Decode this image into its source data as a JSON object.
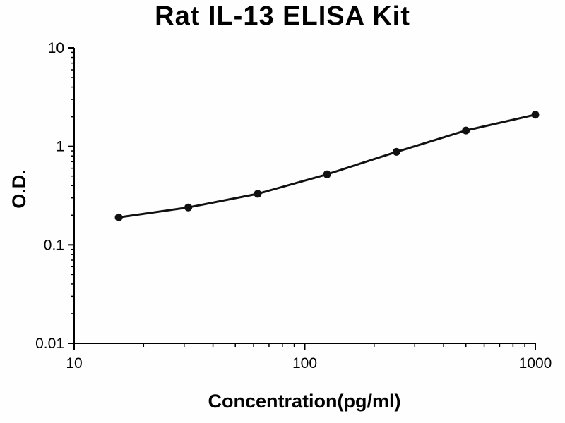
{
  "title": "Rat IL-13 ELISA Kit",
  "chart_data": {
    "type": "line",
    "title": "Rat IL-13 ELISA Kit",
    "xlabel": "Concentration(pg/ml)",
    "ylabel": "O.D.",
    "xscale": "log",
    "yscale": "log",
    "xlim": [
      10,
      1000
    ],
    "ylim": [
      0.01,
      10
    ],
    "x": [
      15.6,
      31.25,
      62.5,
      125,
      250,
      500,
      1000
    ],
    "y": [
      0.19,
      0.24,
      0.33,
      0.52,
      0.88,
      1.45,
      2.1
    ],
    "x_ticks": [
      10,
      100,
      1000
    ],
    "x_tick_labels": [
      "10",
      "100",
      "1000"
    ],
    "y_ticks": [
      0.01,
      0.1,
      1,
      10
    ],
    "y_tick_labels": [
      "0.01",
      "0.1",
      "1",
      "10"
    ],
    "grid": false,
    "legend": null,
    "line_color": "#111111",
    "axis_color": "#000000",
    "text_color": "#000000",
    "marker": "circle"
  }
}
